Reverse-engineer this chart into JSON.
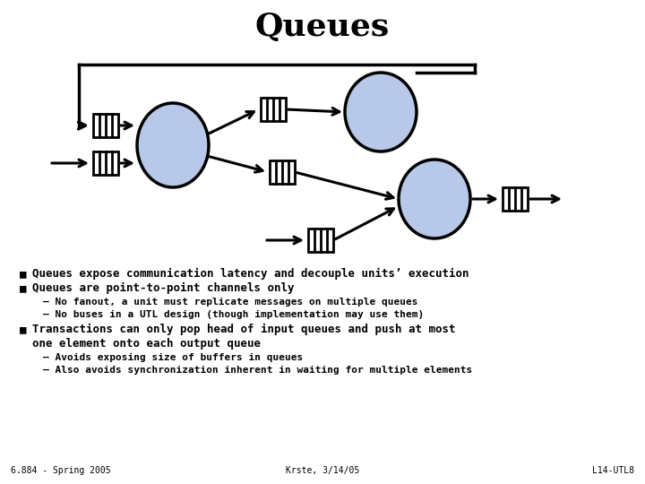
{
  "title": "Queues",
  "title_fontsize": 26,
  "bg_color": "#ffffff",
  "circle_fill": "#b8c8e8",
  "circle_edge": "#000000",
  "arrow_color": "#000000",
  "rect_color": "#ffffff",
  "rect_edge": "#000000",
  "bullet_points": [
    "Queues expose communication latency and decouple units’ execution",
    "Queues are point-to-point channels only"
  ],
  "sub_bullets_1": [
    "No fanout, a unit must replicate messages on multiple queues",
    "No buses in a UTL design (though implementation may use them)"
  ],
  "bullet_point_2a": "Transactions can only pop head of input queues and push at most",
  "bullet_point_2b": "one element onto each output queue",
  "sub_bullets_2": [
    "Avoids exposing size of buffers in queues",
    "Also avoids synchronization inherent in waiting for multiple elements"
  ],
  "footer_left": "6.884 - Spring 2005",
  "footer_center": "Krste, 3/14/05",
  "footer_right": "L14-UTL8"
}
